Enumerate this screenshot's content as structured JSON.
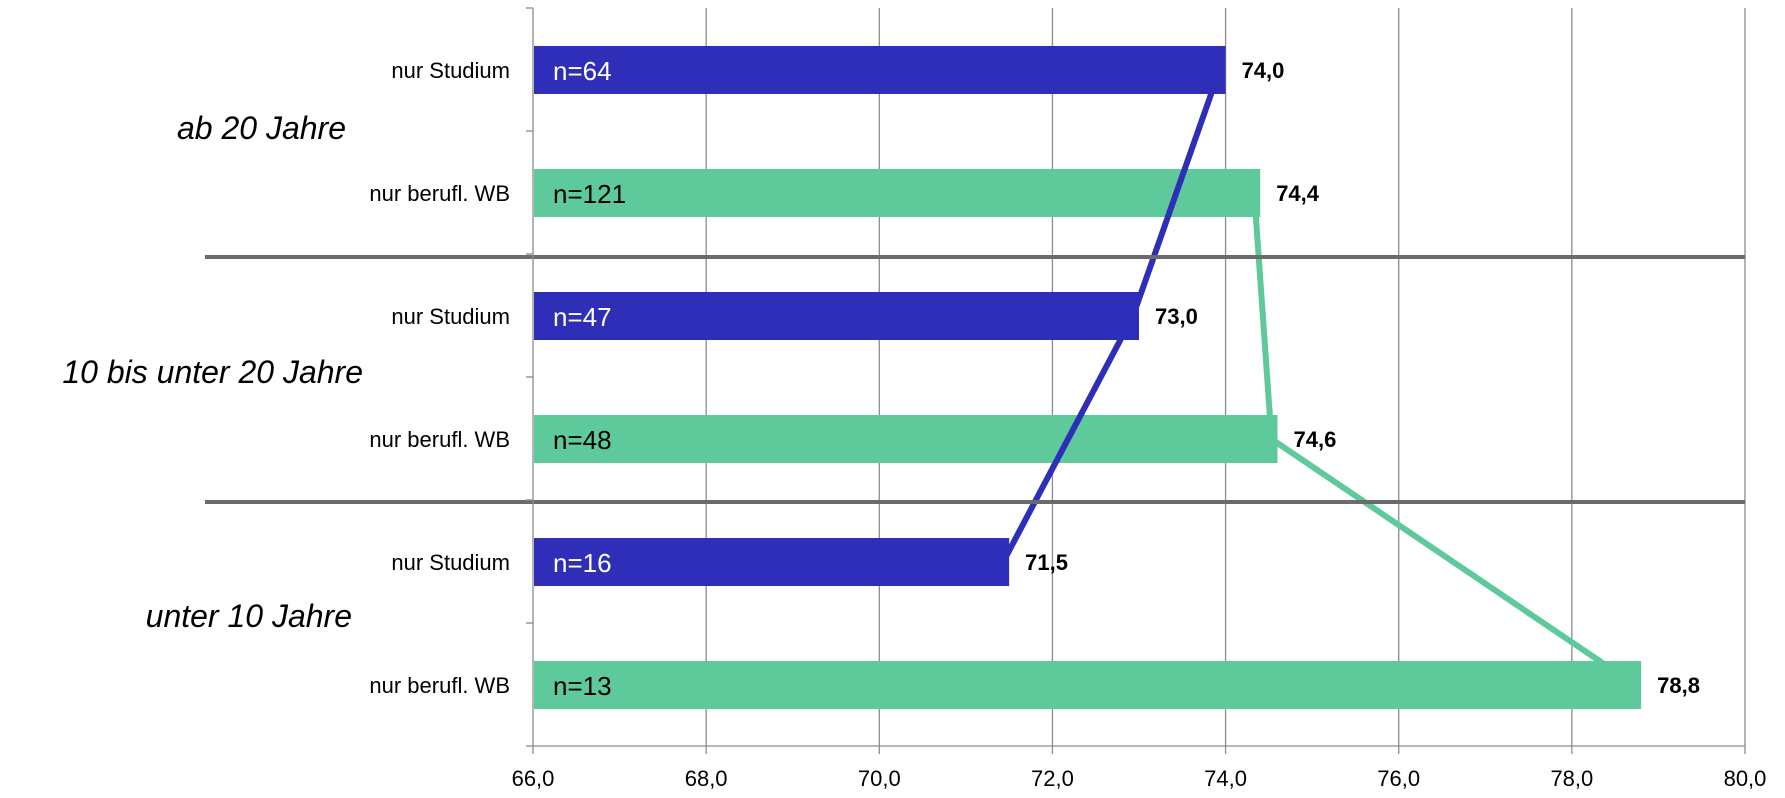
{
  "chart_data": {
    "type": "bar",
    "orientation": "horizontal",
    "xlim": [
      66,
      80
    ],
    "x_ticks": [
      66,
      68,
      70,
      72,
      74,
      76,
      78,
      80
    ],
    "x_tick_labels": [
      "66,0",
      "68,0",
      "70,0",
      "72,0",
      "74,0",
      "76,0",
      "78,0",
      "80,0"
    ],
    "grid": "vertical",
    "colors": {
      "nur Studium": "#2e2eb8",
      "nur berufl. WB": "#5ec99a"
    },
    "groups": [
      {
        "label": "ab 20 Jahre",
        "bars": [
          {
            "category": "nur Studium",
            "value": 74.0,
            "value_label": "74,0",
            "n_label": "n=64"
          },
          {
            "category": "nur berufl. WB",
            "value": 74.4,
            "value_label": "74,4",
            "n_label": "n=121"
          }
        ]
      },
      {
        "label": "10 bis unter 20 Jahre",
        "bars": [
          {
            "category": "nur Studium",
            "value": 73.0,
            "value_label": "73,0",
            "n_label": "n=47"
          },
          {
            "category": "nur berufl. WB",
            "value": 74.6,
            "value_label": "74,6",
            "n_label": "n=48"
          }
        ]
      },
      {
        "label": "unter 10 Jahre",
        "bars": [
          {
            "category": "nur Studium",
            "value": 71.5,
            "value_label": "71,5",
            "n_label": "n=16"
          },
          {
            "category": "nur berufl. WB",
            "value": 78.8,
            "value_label": "78,8",
            "n_label": "n=13"
          }
        ]
      }
    ],
    "connector_lines": [
      "nur Studium",
      "nur berufl. WB"
    ]
  }
}
